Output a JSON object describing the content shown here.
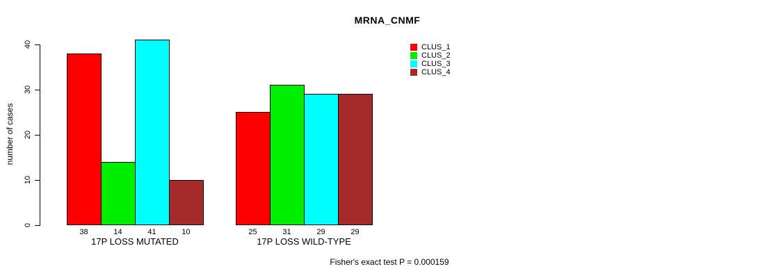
{
  "title": "MRNA_CNMF",
  "footer": "Fisher's exact test P = 0.000159",
  "colors": {
    "background": "#ffffff",
    "axis": "#000000",
    "clus_1": "#ff0000",
    "clus_2": "#00ee00",
    "clus_3": "#00ffff",
    "clus_4": "#a52a2a"
  },
  "chart_data": {
    "type": "bar",
    "title": "MRNA_CNMF",
    "categories": [
      "17P LOSS MUTATED",
      "17P LOSS WILD-TYPE"
    ],
    "series": [
      {
        "name": "CLUS_1",
        "color": "#ff0000",
        "values": [
          38,
          25
        ]
      },
      {
        "name": "CLUS_2",
        "color": "#00ee00",
        "values": [
          14,
          31
        ]
      },
      {
        "name": "CLUS_3",
        "color": "#00ffff",
        "values": [
          41,
          29
        ]
      },
      {
        "name": "CLUS_4",
        "color": "#a52a2a",
        "values": [
          10,
          29
        ]
      }
    ],
    "bar_value_labels": [
      [
        38,
        14,
        41,
        10
      ],
      [
        25,
        31,
        29,
        29
      ]
    ],
    "xlabel": "",
    "ylabel": "number of cases",
    "ylim": [
      0,
      40
    ],
    "yticks": [
      0,
      10,
      20,
      30,
      40
    ],
    "grid": false,
    "legend_position": "top-right",
    "legend_entries": [
      "CLUS_1",
      "CLUS_2",
      "CLUS_3",
      "CLUS_4"
    ],
    "annotation": "Fisher's exact test P = 0.000159"
  }
}
